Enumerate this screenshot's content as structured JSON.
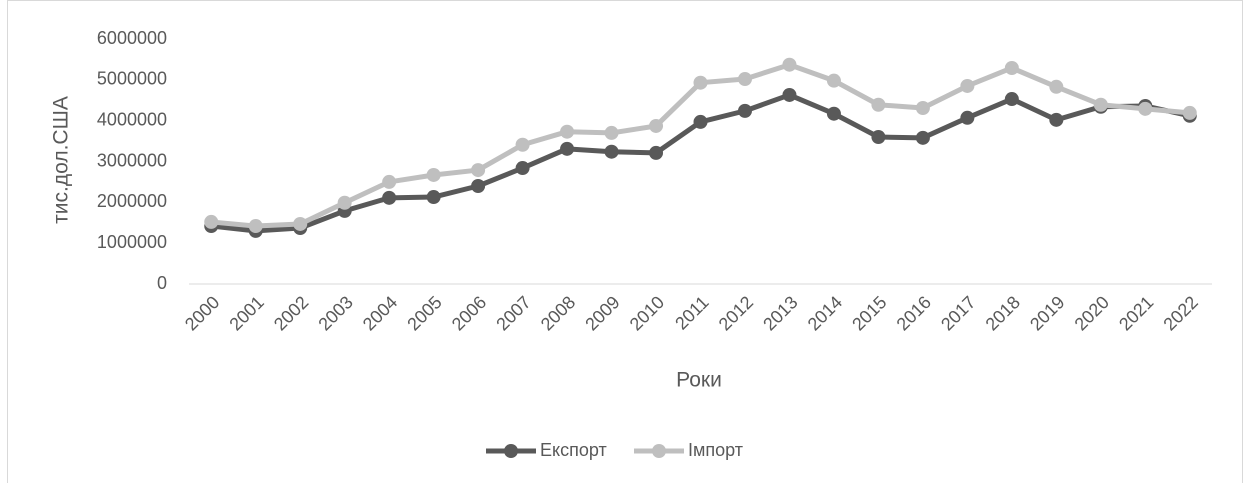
{
  "chart_data": {
    "type": "line",
    "categories": [
      "2000",
      "2001",
      "2002",
      "2003",
      "2004",
      "2005",
      "2006",
      "2007",
      "2008",
      "2009",
      "2010",
      "2011",
      "2012",
      "2013",
      "2014",
      "2015",
      "2016",
      "2017",
      "2018",
      "2019",
      "2020",
      "2021",
      "2022"
    ],
    "series": [
      {
        "name": "Експорт",
        "color": "#595959",
        "values": [
          1420000,
          1300000,
          1370000,
          1790000,
          2110000,
          2130000,
          2400000,
          2840000,
          3310000,
          3240000,
          3210000,
          3970000,
          4240000,
          4630000,
          4170000,
          3600000,
          3580000,
          4070000,
          4530000,
          4020000,
          4340000,
          4360000,
          4120000
        ]
      },
      {
        "name": "Імпорт",
        "color": "#bfbfbf",
        "values": [
          1520000,
          1420000,
          1470000,
          1990000,
          2500000,
          2670000,
          2790000,
          3410000,
          3730000,
          3700000,
          3870000,
          4930000,
          5020000,
          5370000,
          4980000,
          4390000,
          4310000,
          4850000,
          5290000,
          4830000,
          4390000,
          4290000,
          4190000
        ]
      }
    ],
    "x_label": "Роки",
    "y_label": "тис.дол.США",
    "ylim": [
      0,
      6000000
    ],
    "yticks": [
      0,
      1000000,
      2000000,
      3000000,
      4000000,
      5000000,
      6000000
    ],
    "grid": false,
    "legend": "bottom"
  }
}
